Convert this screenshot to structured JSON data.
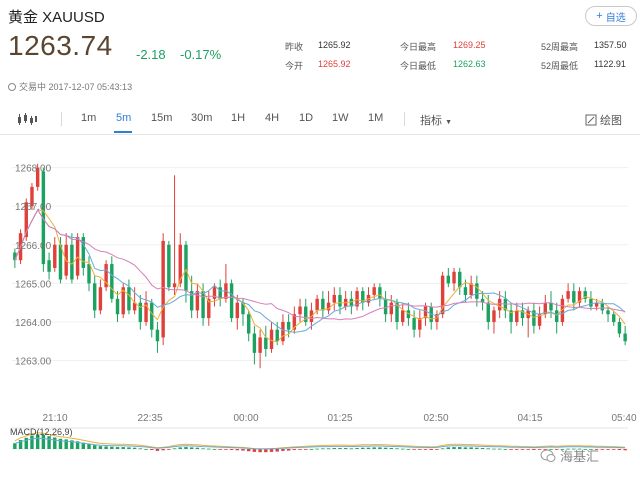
{
  "header": {
    "title": "黄金 XAUUSD",
    "add_label": "自选",
    "price": "1263.74",
    "change": "-2.18",
    "change_pct": "-0.17%",
    "status": "交易中 2017-12-07 05:43:13"
  },
  "stats": [
    {
      "label": "昨收",
      "value": "1265.92",
      "color": "#333333"
    },
    {
      "label": "今开",
      "value": "1265.92",
      "color": "#e0403a"
    },
    {
      "label": "今日最高",
      "value": "1269.25",
      "color": "#e0403a"
    },
    {
      "label": "今日最低",
      "value": "1262.63",
      "color": "#1ba160"
    },
    {
      "label": "52周最高",
      "value": "1357.50",
      "color": "#333333"
    },
    {
      "label": "52周最低",
      "value": "1122.91",
      "color": "#333333"
    }
  ],
  "toolbar": {
    "icon": "candlestick-icon",
    "periods": [
      "1m",
      "5m",
      "15m",
      "30m",
      "1H",
      "4H",
      "1D",
      "1W",
      "1M"
    ],
    "active": "5m",
    "indicator_label": "指标",
    "draw_label": "绘图"
  },
  "colors": {
    "up": "#e0403a",
    "down": "#1ba160",
    "accent": "#2f7fd8",
    "ma1": "#e9b23a",
    "ma2": "#6aaad6",
    "ma3": "#d77fb8"
  },
  "chart_data": {
    "type": "candlestick",
    "y_ticks": [
      "1268.00",
      "1267.00",
      "1266.00",
      "1265.00",
      "1264.00",
      "1263.00"
    ],
    "x_ticks": [
      "21:10",
      "22:35",
      "00:00",
      "01:25",
      "02:50",
      "04:15",
      "05:40"
    ],
    "ylim": [
      1262.6,
      1268.3
    ],
    "macd_label": "MACD(12,26,9)",
    "candles": [
      [
        1265.8,
        1265.6,
        1265.9,
        1265.4
      ],
      [
        1265.6,
        1266.3,
        1266.4,
        1265.5
      ],
      [
        1266.2,
        1267.1,
        1267.2,
        1266.1
      ],
      [
        1267.0,
        1267.5,
        1267.6,
        1266.9
      ],
      [
        1267.5,
        1268.0,
        1268.1,
        1267.4
      ],
      [
        1267.9,
        1265.5,
        1268.0,
        1265.3
      ],
      [
        1265.6,
        1265.3,
        1265.8,
        1265.1
      ],
      [
        1265.4,
        1266.0,
        1266.2,
        1265.3
      ],
      [
        1266.0,
        1265.1,
        1266.2,
        1265.0
      ],
      [
        1265.2,
        1266.0,
        1266.3,
        1265.1
      ],
      [
        1266.0,
        1265.1,
        1266.3,
        1265.0
      ],
      [
        1265.2,
        1266.2,
        1266.3,
        1265.1
      ],
      [
        1266.2,
        1265.4,
        1266.3,
        1265.2
      ],
      [
        1265.5,
        1265.0,
        1265.7,
        1264.8
      ],
      [
        1265.0,
        1264.3,
        1265.2,
        1264.1
      ],
      [
        1264.3,
        1264.9,
        1265.1,
        1264.2
      ],
      [
        1264.9,
        1265.5,
        1265.6,
        1264.8
      ],
      [
        1265.5,
        1264.6,
        1265.7,
        1264.5
      ],
      [
        1264.6,
        1264.2,
        1264.8,
        1264.0
      ],
      [
        1264.2,
        1264.9,
        1265.0,
        1264.1
      ],
      [
        1264.9,
        1264.3,
        1265.1,
        1264.2
      ],
      [
        1264.3,
        1264.5,
        1264.9,
        1264.2
      ],
      [
        1264.5,
        1264.0,
        1264.7,
        1263.8
      ],
      [
        1264.0,
        1264.5,
        1264.8,
        1263.9
      ],
      [
        1264.5,
        1263.8,
        1264.6,
        1263.6
      ],
      [
        1263.8,
        1263.5,
        1264.0,
        1263.2
      ],
      [
        1263.6,
        1266.1,
        1266.3,
        1263.4
      ],
      [
        1266.0,
        1264.9,
        1266.1,
        1264.8
      ],
      [
        1264.9,
        1265.0,
        1267.8,
        1264.7
      ],
      [
        1265.0,
        1266.0,
        1266.3,
        1264.9
      ],
      [
        1266.0,
        1264.8,
        1266.1,
        1264.5
      ],
      [
        1264.8,
        1264.3,
        1265.2,
        1264.1
      ],
      [
        1264.3,
        1264.8,
        1265.0,
        1264.1
      ],
      [
        1264.8,
        1264.1,
        1265.0,
        1263.9
      ],
      [
        1264.1,
        1264.6,
        1264.8,
        1263.9
      ],
      [
        1264.6,
        1264.9,
        1265.0,
        1264.4
      ],
      [
        1264.9,
        1264.6,
        1265.1,
        1264.4
      ],
      [
        1264.6,
        1265.0,
        1265.5,
        1264.5
      ],
      [
        1265.0,
        1264.1,
        1265.1,
        1264.0
      ],
      [
        1264.1,
        1264.5,
        1264.7,
        1263.8
      ],
      [
        1264.5,
        1264.2,
        1264.6,
        1263.9
      ],
      [
        1264.2,
        1263.7,
        1264.3,
        1263.5
      ],
      [
        1263.7,
        1263.2,
        1263.9,
        1262.9
      ],
      [
        1263.2,
        1263.6,
        1263.8,
        1262.8
      ],
      [
        1263.6,
        1263.3,
        1263.9,
        1263.1
      ],
      [
        1263.3,
        1263.8,
        1264.0,
        1263.2
      ],
      [
        1263.8,
        1263.5,
        1264.0,
        1263.4
      ],
      [
        1263.5,
        1264.0,
        1264.2,
        1263.4
      ],
      [
        1264.0,
        1263.8,
        1264.2,
        1263.6
      ],
      [
        1263.8,
        1264.2,
        1264.4,
        1263.7
      ],
      [
        1264.2,
        1264.4,
        1264.6,
        1264.0
      ],
      [
        1264.4,
        1264.0,
        1264.6,
        1263.9
      ],
      [
        1264.0,
        1264.3,
        1264.5,
        1263.8
      ],
      [
        1264.3,
        1264.6,
        1264.7,
        1264.2
      ],
      [
        1264.6,
        1264.3,
        1264.8,
        1264.1
      ],
      [
        1264.3,
        1264.5,
        1264.8,
        1264.2
      ],
      [
        1264.5,
        1264.7,
        1264.9,
        1264.3
      ],
      [
        1264.7,
        1264.4,
        1264.9,
        1264.2
      ],
      [
        1264.4,
        1264.6,
        1264.8,
        1264.3
      ],
      [
        1264.6,
        1264.4,
        1264.8,
        1264.2
      ],
      [
        1264.4,
        1264.8,
        1264.9,
        1264.3
      ],
      [
        1264.8,
        1264.5,
        1264.9,
        1264.3
      ],
      [
        1264.5,
        1264.7,
        1264.9,
        1264.4
      ],
      [
        1264.7,
        1264.9,
        1265.0,
        1264.6
      ],
      [
        1264.9,
        1264.6,
        1265.0,
        1264.4
      ],
      [
        1264.6,
        1264.2,
        1264.8,
        1264.0
      ],
      [
        1264.2,
        1264.5,
        1264.7,
        1264.0
      ],
      [
        1264.5,
        1264.0,
        1264.6,
        1263.8
      ],
      [
        1264.0,
        1264.3,
        1264.5,
        1263.9
      ],
      [
        1264.3,
        1264.1,
        1264.5,
        1263.9
      ],
      [
        1264.1,
        1263.8,
        1264.3,
        1263.6
      ],
      [
        1263.8,
        1264.1,
        1264.3,
        1263.6
      ],
      [
        1264.1,
        1264.4,
        1264.5,
        1263.9
      ],
      [
        1264.4,
        1264.0,
        1264.5,
        1263.8
      ],
      [
        1264.0,
        1264.2,
        1264.3,
        1263.8
      ],
      [
        1264.2,
        1265.2,
        1265.3,
        1264.1
      ],
      [
        1265.2,
        1265.0,
        1265.4,
        1264.9
      ],
      [
        1265.0,
        1265.3,
        1265.4,
        1264.8
      ],
      [
        1265.3,
        1264.9,
        1265.4,
        1264.7
      ],
      [
        1264.9,
        1264.7,
        1265.1,
        1264.5
      ],
      [
        1264.7,
        1265.0,
        1265.2,
        1264.6
      ],
      [
        1265.0,
        1264.6,
        1265.2,
        1264.4
      ],
      [
        1264.6,
        1264.5,
        1264.8,
        1264.3
      ],
      [
        1264.5,
        1264.0,
        1264.7,
        1263.8
      ],
      [
        1264.0,
        1264.3,
        1264.4,
        1263.7
      ],
      [
        1264.3,
        1264.6,
        1264.8,
        1264.1
      ],
      [
        1264.6,
        1264.3,
        1264.8,
        1264.1
      ],
      [
        1264.3,
        1264.0,
        1264.5,
        1263.7
      ],
      [
        1264.0,
        1264.3,
        1264.5,
        1263.9
      ],
      [
        1264.3,
        1264.1,
        1264.5,
        1263.9
      ],
      [
        1264.1,
        1264.3,
        1264.4,
        1263.6
      ],
      [
        1264.3,
        1263.9,
        1264.5,
        1263.7
      ],
      [
        1263.9,
        1264.2,
        1264.4,
        1263.8
      ],
      [
        1264.2,
        1264.5,
        1264.7,
        1264.1
      ],
      [
        1264.5,
        1264.3,
        1264.8,
        1264.1
      ],
      [
        1264.3,
        1264.0,
        1264.5,
        1263.7
      ],
      [
        1264.0,
        1264.6,
        1264.7,
        1263.9
      ],
      [
        1264.6,
        1264.8,
        1265.0,
        1264.5
      ],
      [
        1264.8,
        1264.5,
        1265.0,
        1264.3
      ],
      [
        1264.5,
        1264.8,
        1264.9,
        1264.4
      ],
      [
        1264.8,
        1264.6,
        1264.9,
        1264.5
      ],
      [
        1264.6,
        1264.4,
        1264.8,
        1264.3
      ],
      [
        1264.4,
        1264.5,
        1264.6,
        1264.3
      ],
      [
        1264.5,
        1264.3,
        1264.6,
        1264.2
      ],
      [
        1264.3,
        1264.2,
        1264.4,
        1264.0
      ],
      [
        1264.2,
        1264.0,
        1264.3,
        1263.9
      ],
      [
        1264.0,
        1263.7,
        1264.1,
        1263.6
      ],
      [
        1263.7,
        1263.5,
        1263.9,
        1263.4
      ]
    ],
    "macd": [
      0.18,
      0.28,
      0.35,
      0.42,
      0.46,
      0.44,
      0.4,
      0.36,
      0.32,
      0.3,
      0.27,
      0.24,
      0.2,
      0.16,
      0.12,
      0.09,
      0.08,
      0.07,
      0.06,
      0.06,
      0.05,
      0.04,
      0.02,
      0.0,
      -0.03,
      -0.06,
      -0.04,
      -0.02,
      0.02,
      0.05,
      0.06,
      0.05,
      0.04,
      0.02,
      0.01,
      0.0,
      -0.01,
      -0.02,
      -0.03,
      -0.04,
      -0.05,
      -0.07,
      -0.09,
      -0.1,
      -0.1,
      -0.09,
      -0.08,
      -0.06,
      -0.05,
      -0.03,
      -0.02,
      -0.01,
      0.0,
      0.01,
      0.02,
      0.02,
      0.03,
      0.03,
      0.03,
      0.02,
      0.03,
      0.04,
      0.04,
      0.05,
      0.05,
      0.04,
      0.03,
      0.02,
      0.01,
      0.0,
      -0.01,
      -0.02,
      -0.02,
      -0.03,
      -0.02,
      0.02,
      0.05,
      0.06,
      0.06,
      0.05,
      0.05,
      0.04,
      0.03,
      0.02,
      0.01,
      0.01,
      0.0,
      -0.01,
      -0.01,
      -0.02,
      -0.02,
      -0.03,
      -0.02,
      -0.01,
      0.0,
      -0.01,
      0.0,
      0.01,
      0.01,
      0.01,
      0.0,
      0.0,
      -0.01,
      -0.01,
      -0.02,
      -0.02,
      -0.03,
      -0.04
    ]
  },
  "watermark": "海基汇"
}
